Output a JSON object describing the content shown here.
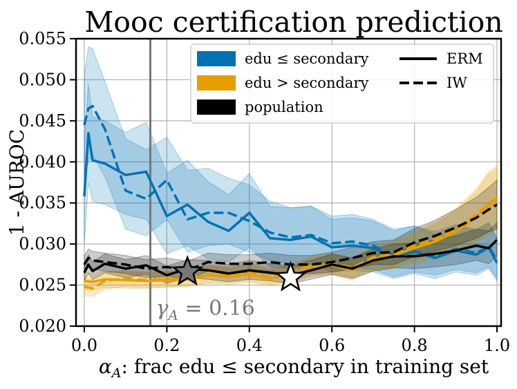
{
  "chart_data": {
    "type": "line",
    "title": "Mooc certification prediction",
    "xlabel": "α_A: frac edu ≤ secondary in training set",
    "ylabel": "1 - AUROC",
    "xlim": [
      -0.02,
      1.01
    ],
    "ylim": [
      0.02,
      0.055
    ],
    "xticks": [
      "0.0",
      "0.2",
      "0.4",
      "0.6",
      "0.8",
      "1.0"
    ],
    "yticks": [
      "0.020",
      "0.025",
      "0.030",
      "0.035",
      "0.040",
      "0.045",
      "0.050",
      "0.055"
    ],
    "grid": true,
    "legend_position": "top-right",
    "legend": {
      "groups": [
        {
          "label": "edu ≤ secondary",
          "color": "#0072B2"
        },
        {
          "label": "edu > secondary",
          "color": "#E69F00"
        },
        {
          "label": "population",
          "color": "#000000"
        }
      ],
      "styles": [
        {
          "label": "ERM",
          "dash": "solid"
        },
        {
          "label": "IW",
          "dash": "dashed"
        }
      ]
    },
    "vline": {
      "x": 0.16,
      "label": "γ_A = 0.16",
      "color": "#777777"
    },
    "markers": [
      {
        "x": 0.25,
        "y": 0.0266,
        "symbol": "star",
        "color": "#777777"
      },
      {
        "x": 0.5,
        "y": 0.0259,
        "symbol": "star",
        "color": "#ffffff"
      }
    ],
    "series": [
      {
        "name": "edu ≤ secondary",
        "style": "ERM",
        "color": "#0072B2",
        "x": [
          0.0,
          0.01,
          0.02,
          0.05,
          0.1,
          0.15,
          0.2,
          0.25,
          0.3,
          0.35,
          0.4,
          0.45,
          0.5,
          0.55,
          0.6,
          0.65,
          0.7,
          0.75,
          0.8,
          0.85,
          0.9,
          0.95,
          0.98,
          1.0
        ],
        "y": [
          0.0358,
          0.0435,
          0.0402,
          0.0398,
          0.0384,
          0.0388,
          0.0334,
          0.0348,
          0.0327,
          0.0316,
          0.0338,
          0.0307,
          0.0305,
          0.0309,
          0.0296,
          0.0298,
          0.0295,
          0.0284,
          0.0291,
          0.0283,
          0.0292,
          0.0287,
          0.0296,
          0.0277
        ],
        "lower": [
          0.03,
          0.0375,
          0.0352,
          0.0348,
          0.0336,
          0.033,
          0.0288,
          0.0298,
          0.0282,
          0.0278,
          0.0296,
          0.0272,
          0.027,
          0.0276,
          0.0266,
          0.0268,
          0.0266,
          0.0258,
          0.0264,
          0.0258,
          0.0266,
          0.0262,
          0.027,
          0.0255
        ],
        "upper": [
          0.042,
          0.0495,
          0.0455,
          0.045,
          0.0436,
          0.0448,
          0.0386,
          0.0402,
          0.0376,
          0.036,
          0.0386,
          0.0346,
          0.0344,
          0.0346,
          0.033,
          0.0332,
          0.0328,
          0.0316,
          0.0322,
          0.0312,
          0.0322,
          0.0316,
          0.0326,
          0.0306
        ]
      },
      {
        "name": "edu ≤ secondary",
        "style": "IW",
        "color": "#0072B2",
        "x": [
          0.0,
          0.01,
          0.02,
          0.05,
          0.1,
          0.15,
          0.2,
          0.25,
          0.3,
          0.35,
          0.4,
          0.45,
          0.5,
          0.55,
          0.6,
          0.65,
          0.7,
          0.75,
          0.8,
          0.85,
          0.9,
          0.95,
          0.98,
          1.0
        ],
        "y": [
          0.0445,
          0.0465,
          0.0468,
          0.044,
          0.0365,
          0.0355,
          0.0378,
          0.033,
          0.0338,
          0.0338,
          0.0328,
          0.0314,
          0.0308,
          0.0311,
          0.0301,
          0.0303,
          0.0298,
          0.0286,
          0.0291,
          0.0286,
          0.0294,
          0.0289,
          0.0297,
          0.028
        ],
        "lower": [
          0.038,
          0.04,
          0.0408,
          0.0382,
          0.0318,
          0.031,
          0.033,
          0.029,
          0.0298,
          0.03,
          0.029,
          0.028,
          0.0276,
          0.028,
          0.027,
          0.0272,
          0.0269,
          0.026,
          0.0266,
          0.0262,
          0.0269,
          0.0265,
          0.0272,
          0.0258
        ],
        "upper": [
          0.0505,
          0.054,
          0.0538,
          0.0498,
          0.0428,
          0.0415,
          0.043,
          0.039,
          0.0392,
          0.038,
          0.0372,
          0.0352,
          0.0344,
          0.0346,
          0.0334,
          0.0336,
          0.033,
          0.0318,
          0.0322,
          0.0315,
          0.0324,
          0.0318,
          0.0326,
          0.0308
        ]
      },
      {
        "name": "edu > secondary",
        "style": "ERM",
        "color": "#E69F00",
        "x": [
          0.0,
          0.02,
          0.05,
          0.1,
          0.15,
          0.2,
          0.25,
          0.3,
          0.35,
          0.4,
          0.45,
          0.5,
          0.55,
          0.6,
          0.65,
          0.7,
          0.75,
          0.8,
          0.85,
          0.9,
          0.95,
          0.98,
          1.0
        ],
        "y": [
          0.0255,
          0.0254,
          0.0257,
          0.0256,
          0.0255,
          0.0256,
          0.0257,
          0.0262,
          0.026,
          0.0263,
          0.0258,
          0.0263,
          0.0272,
          0.0274,
          0.0268,
          0.0282,
          0.0286,
          0.0295,
          0.0303,
          0.0315,
          0.0333,
          0.0347,
          0.0352
        ],
        "lower": [
          0.0245,
          0.0244,
          0.0247,
          0.0246,
          0.0246,
          0.0247,
          0.0248,
          0.0252,
          0.0251,
          0.0253,
          0.0249,
          0.0253,
          0.0261,
          0.0262,
          0.0256,
          0.0268,
          0.027,
          0.0277,
          0.0282,
          0.029,
          0.0302,
          0.0312,
          0.0318
        ],
        "upper": [
          0.0266,
          0.0264,
          0.0267,
          0.0266,
          0.0265,
          0.0266,
          0.0267,
          0.0273,
          0.027,
          0.0274,
          0.0268,
          0.0273,
          0.0283,
          0.0286,
          0.028,
          0.0296,
          0.0302,
          0.0313,
          0.0324,
          0.034,
          0.0364,
          0.0385,
          0.0392
        ]
      },
      {
        "name": "edu > secondary",
        "style": "IW",
        "color": "#E69F00",
        "x": [
          0.0,
          0.02,
          0.05,
          0.1,
          0.15,
          0.2,
          0.25,
          0.3,
          0.35,
          0.4,
          0.45,
          0.5,
          0.55,
          0.6,
          0.65,
          0.7,
          0.75,
          0.8,
          0.85,
          0.9,
          0.95,
          0.98,
          1.0
        ],
        "y": [
          0.0248,
          0.0246,
          0.0255,
          0.0258,
          0.0256,
          0.0257,
          0.0258,
          0.0263,
          0.0262,
          0.0265,
          0.026,
          0.0265,
          0.0274,
          0.0276,
          0.0271,
          0.0284,
          0.0288,
          0.0298,
          0.0306,
          0.0318,
          0.0336,
          0.035,
          0.0355
        ],
        "lower": [
          0.0238,
          0.0236,
          0.0245,
          0.0248,
          0.0247,
          0.0248,
          0.0249,
          0.0253,
          0.0253,
          0.0255,
          0.0251,
          0.0255,
          0.0263,
          0.0264,
          0.0259,
          0.027,
          0.0272,
          0.028,
          0.0285,
          0.0293,
          0.0305,
          0.0315,
          0.0321
        ],
        "upper": [
          0.0259,
          0.0256,
          0.0265,
          0.0268,
          0.0266,
          0.0267,
          0.0268,
          0.0274,
          0.0272,
          0.0276,
          0.027,
          0.0275,
          0.0285,
          0.0288,
          0.0283,
          0.0298,
          0.0304,
          0.0316,
          0.0327,
          0.0343,
          0.0367,
          0.0388,
          0.0395
        ]
      },
      {
        "name": "population",
        "style": "ERM",
        "color": "#000000",
        "x": [
          0.0,
          0.01,
          0.02,
          0.05,
          0.1,
          0.15,
          0.2,
          0.25,
          0.3,
          0.35,
          0.4,
          0.45,
          0.5,
          0.55,
          0.6,
          0.65,
          0.7,
          0.75,
          0.8,
          0.85,
          0.9,
          0.95,
          0.98,
          1.0
        ],
        "y": [
          0.0265,
          0.0275,
          0.0267,
          0.0276,
          0.027,
          0.0274,
          0.0262,
          0.027,
          0.0268,
          0.0264,
          0.0268,
          0.0265,
          0.0262,
          0.0268,
          0.0275,
          0.027,
          0.028,
          0.0285,
          0.0285,
          0.0288,
          0.0292,
          0.0298,
          0.0295,
          0.0305
        ],
        "lower": [
          0.0255,
          0.0264,
          0.0257,
          0.0265,
          0.0259,
          0.0263,
          0.0252,
          0.0259,
          0.0257,
          0.0254,
          0.0257,
          0.0255,
          0.0252,
          0.0257,
          0.0263,
          0.0258,
          0.0267,
          0.0271,
          0.027,
          0.0272,
          0.0275,
          0.028,
          0.0276,
          0.0285
        ],
        "upper": [
          0.0276,
          0.0287,
          0.0278,
          0.0288,
          0.0281,
          0.0286,
          0.0273,
          0.0281,
          0.028,
          0.0275,
          0.028,
          0.0276,
          0.0273,
          0.028,
          0.0288,
          0.0283,
          0.0294,
          0.03,
          0.0301,
          0.0305,
          0.031,
          0.0318,
          0.0316,
          0.0326
        ]
      },
      {
        "name": "population",
        "style": "IW",
        "color": "#000000",
        "x": [
          0.0,
          0.01,
          0.02,
          0.05,
          0.1,
          0.15,
          0.2,
          0.25,
          0.3,
          0.35,
          0.4,
          0.45,
          0.5,
          0.55,
          0.6,
          0.65,
          0.7,
          0.75,
          0.8,
          0.85,
          0.9,
          0.95,
          0.98,
          1.0
        ],
        "y": [
          0.0275,
          0.0283,
          0.028,
          0.0278,
          0.0275,
          0.027,
          0.0272,
          0.0268,
          0.0278,
          0.0276,
          0.0276,
          0.0278,
          0.0275,
          0.0275,
          0.0278,
          0.0283,
          0.0289,
          0.029,
          0.0302,
          0.031,
          0.032,
          0.0332,
          0.0342,
          0.0348
        ],
        "lower": [
          0.0264,
          0.0272,
          0.0269,
          0.0267,
          0.0264,
          0.0259,
          0.0261,
          0.0257,
          0.0267,
          0.0265,
          0.0265,
          0.0267,
          0.0264,
          0.0264,
          0.0266,
          0.027,
          0.0275,
          0.0275,
          0.0285,
          0.0291,
          0.0298,
          0.0307,
          0.0315,
          0.0318
        ],
        "upper": [
          0.0286,
          0.0294,
          0.0291,
          0.0289,
          0.0286,
          0.0281,
          0.0283,
          0.0279,
          0.0289,
          0.0287,
          0.0287,
          0.0289,
          0.0286,
          0.0286,
          0.029,
          0.0296,
          0.0303,
          0.0305,
          0.0319,
          0.0329,
          0.0342,
          0.0357,
          0.0369,
          0.0378
        ]
      }
    ]
  }
}
